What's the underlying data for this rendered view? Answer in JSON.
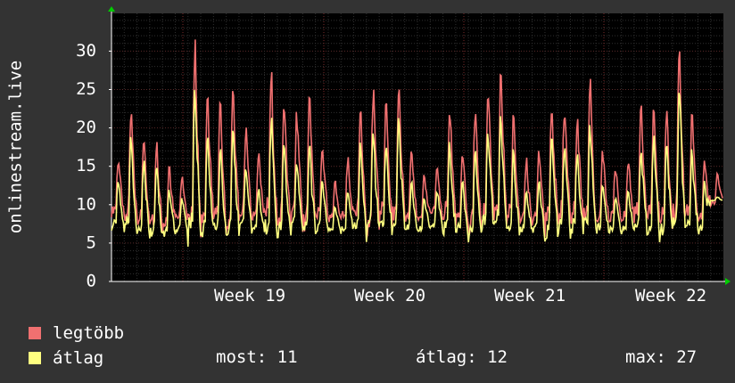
{
  "chart_data": {
    "type": "line",
    "ylabel": "onlinestream.live",
    "ylim": [
      0,
      35
    ],
    "yticks": [
      0,
      5,
      10,
      15,
      20,
      25,
      30
    ],
    "categories": [
      "Week 19",
      "Week 20",
      "Week 21",
      "Week 22"
    ],
    "grid": true,
    "legend_placement": "bottom-left",
    "series": [
      {
        "name": "legtöbb",
        "color": "#f07070",
        "daily_peaks": [
          16,
          22,
          19,
          18,
          15,
          14,
          31,
          25,
          23,
          26,
          20,
          17,
          27,
          24,
          22,
          24,
          18,
          13,
          16,
          22,
          25,
          23,
          26,
          17,
          14,
          15,
          23,
          17,
          23,
          25,
          27,
          22,
          16,
          17,
          24,
          23,
          22,
          26,
          17,
          15,
          16,
          23,
          24,
          23,
          30,
          22,
          16,
          14
        ],
        "daily_mins": [
          9,
          8,
          8,
          7,
          7,
          8,
          7,
          7,
          8,
          7,
          8,
          8,
          8,
          7,
          8,
          7,
          8,
          8,
          8,
          8,
          7,
          8,
          8,
          8,
          8,
          9,
          8,
          8,
          7,
          8,
          8,
          8,
          8,
          8,
          7,
          8,
          8,
          8,
          8,
          8,
          8,
          8,
          8,
          7,
          8,
          8,
          8,
          10
        ]
      },
      {
        "name": "átlag",
        "color": "#ffff80",
        "daily_peaks": [
          13,
          19,
          16,
          15,
          12,
          11,
          26,
          19,
          17,
          20,
          15,
          12,
          21,
          18,
          16,
          18,
          13,
          10,
          12,
          18,
          20,
          18,
          21,
          13,
          11,
          12,
          18,
          13,
          18,
          20,
          22,
          17,
          12,
          13,
          19,
          18,
          17,
          21,
          13,
          11,
          12,
          18,
          19,
          18,
          26,
          17,
          13,
          11
        ],
        "daily_mins": [
          7,
          6.5,
          6.5,
          6,
          6,
          6.5,
          6,
          6,
          6.5,
          6,
          6.5,
          6.5,
          6.5,
          6,
          6.5,
          6,
          6.5,
          6.5,
          6.5,
          6.5,
          6,
          6.5,
          6.5,
          6.5,
          6.5,
          7,
          6.5,
          6.5,
          6,
          6.5,
          6.5,
          6.5,
          6.5,
          6.5,
          6,
          6.5,
          6.5,
          6.5,
          6.5,
          6.5,
          6.5,
          6.5,
          6.5,
          6,
          6.5,
          6.5,
          6.5,
          10.5
        ]
      }
    ]
  },
  "legend": {
    "max_label": "legtöbb",
    "avg_label": "átlag",
    "now_text": "most: 11",
    "avg_text": "átlag: 12",
    "max_text": "max: 27"
  },
  "colors": {
    "background": "#333333",
    "plot": "#000000",
    "grid_minor": "#3a3a3a",
    "grid_major": "#5a2a2a",
    "axis_arrow": "#00cc00"
  }
}
